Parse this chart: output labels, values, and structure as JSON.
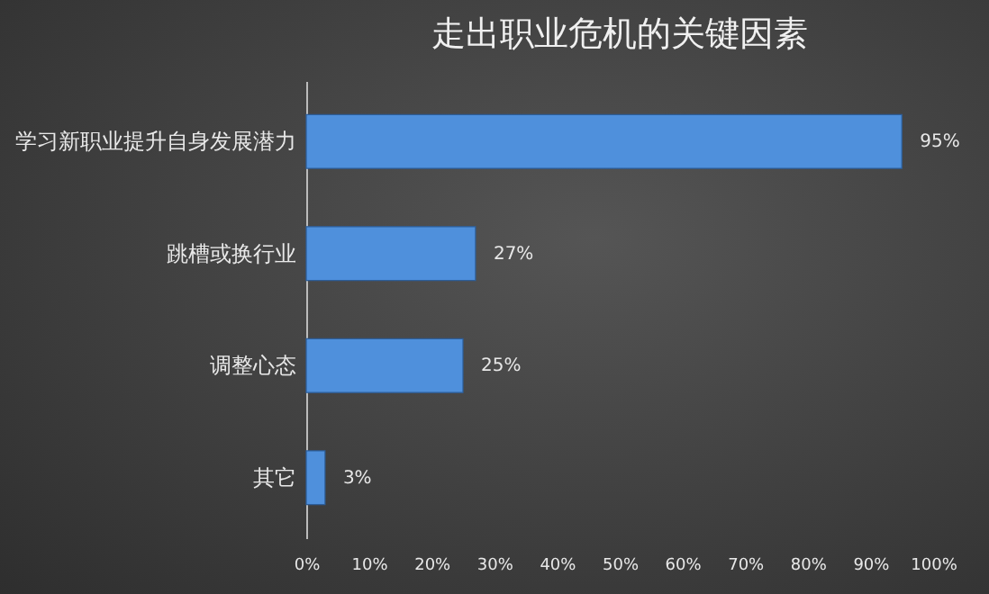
{
  "chart_data": {
    "type": "bar",
    "orientation": "horizontal",
    "title": "走出职业危机的关键因素",
    "categories": [
      "学习新职业提升自身发展潜力",
      "跳槽或换行业",
      "调整心态",
      "其它"
    ],
    "values": [
      95,
      27,
      25,
      3
    ],
    "color": "#4f90dc",
    "value_labels": [
      "95%",
      "27%",
      "25%",
      "3%"
    ],
    "xlim": [
      0,
      100
    ],
    "xticks": [
      {
        "value": 0,
        "label": "0%"
      },
      {
        "value": 10,
        "label": "10%"
      },
      {
        "value": 20,
        "label": "20%"
      },
      {
        "value": 30,
        "label": "30%"
      },
      {
        "value": 40,
        "label": "40%"
      },
      {
        "value": 50,
        "label": "50%"
      },
      {
        "value": 60,
        "label": "60%"
      },
      {
        "value": 70,
        "label": "70%"
      },
      {
        "value": 80,
        "label": "80%"
      },
      {
        "value": 90,
        "label": "90%"
      },
      {
        "value": 100,
        "label": "100%"
      }
    ],
    "grid": false
  }
}
